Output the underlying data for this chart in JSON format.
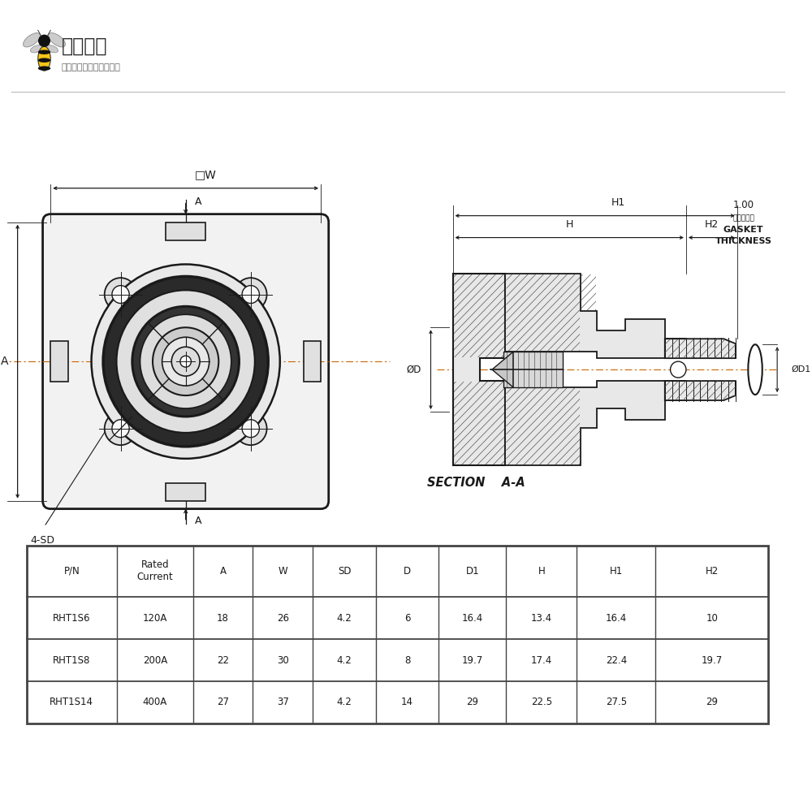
{
  "bg_color": "#ffffff",
  "logo_text_main": "电蜂优选",
  "logo_text_sub": "原厂直采电子连接器商城",
  "section_label": "SECTION    A-A",
  "gasket_line1": "密封层厚度",
  "gasket_line2": "GASKET",
  "gasket_line3": "THICKNESS",
  "gasket_value": "1.00",
  "label_4sd": "4-SD",
  "dim_W": "□W",
  "dim_A": "A",
  "dim_phiD": "ØD",
  "dim_phiD1": "ØD1",
  "dim_H": "H",
  "dim_H1": "H1",
  "dim_H2": "H2",
  "table_headers": [
    "P/N",
    "Rated\nCurrent",
    "A",
    "W",
    "SD",
    "D",
    "D1",
    "H",
    "H1",
    "H2"
  ],
  "table_rows": [
    [
      "RHT1S6",
      "120A",
      "18",
      "26",
      "4.2",
      "6",
      "16.4",
      "13.4",
      "16.4",
      "10"
    ],
    [
      "RHT1S8",
      "200A",
      "22",
      "30",
      "4.2",
      "8",
      "19.7",
      "17.4",
      "22.4",
      "19.7"
    ],
    [
      "RHT1S14",
      "400A",
      "27",
      "37",
      "4.2",
      "14",
      "29",
      "22.5",
      "27.5",
      "29"
    ]
  ],
  "line_color": "#1a1a1a",
  "text_color": "#1a1a1a",
  "table_line_color": "#444444",
  "hatch_color": "#555555",
  "fill_light": "#e8e8e8",
  "fill_mid": "#d0d0d0",
  "fill_dark": "#b0b0b0"
}
